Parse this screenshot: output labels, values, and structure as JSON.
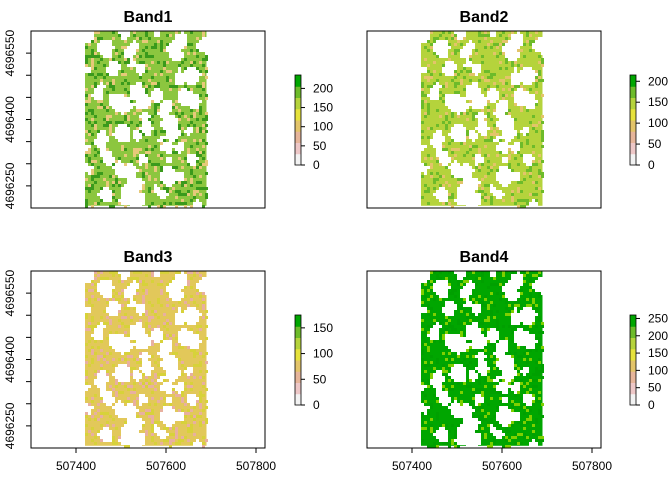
{
  "chart_data": [
    {
      "type": "heatmap",
      "title": "Band1",
      "xlim": [
        507300,
        507820
      ],
      "ylim": [
        4696200,
        4696600
      ],
      "x_ticks": [],
      "y_ticks": [
        "4696250",
        "4696400",
        "4696550"
      ],
      "raster_extent": {
        "x": [
          507420,
          507690
        ],
        "y": [
          4696205,
          4696600
        ]
      },
      "legend": {
        "min": 0,
        "max": 235,
        "ticks": [
          "0",
          "50",
          "100",
          "150",
          "200"
        ]
      },
      "value_range": [
        0,
        235
      ],
      "colors": {
        "dominant": "#8cc63f",
        "high": "#3a9a1c",
        "low": "#e6c97a",
        "nodata": "#ffffff"
      },
      "nodata_fraction": 0.3
    },
    {
      "type": "heatmap",
      "title": "Band2",
      "xlim": [
        507300,
        507820
      ],
      "ylim": [
        4696200,
        4696600
      ],
      "x_ticks": [],
      "y_ticks": [],
      "raster_extent": {
        "x": [
          507420,
          507690
        ],
        "y": [
          4696205,
          4696600
        ]
      },
      "legend": {
        "min": 0,
        "max": 215,
        "ticks": [
          "0",
          "50",
          "100",
          "150",
          "200"
        ]
      },
      "value_range": [
        0,
        215
      ],
      "colors": {
        "dominant": "#b5d33c",
        "high": "#6dbb2a",
        "low": "#e3c46a",
        "nodata": "#ffffff"
      },
      "nodata_fraction": 0.3
    },
    {
      "type": "heatmap",
      "title": "Band3",
      "xlim": [
        507300,
        507820
      ],
      "ylim": [
        4696200,
        4696600
      ],
      "x_ticks": [
        "507400",
        "507600",
        "507800"
      ],
      "y_ticks": [
        "4696250",
        "4696400",
        "4696550"
      ],
      "raster_extent": {
        "x": [
          507420,
          507690
        ],
        "y": [
          4696205,
          4696600
        ]
      },
      "legend": {
        "min": 0,
        "max": 175,
        "ticks": [
          "0",
          "50",
          "100",
          "150"
        ]
      },
      "value_range": [
        0,
        175
      ],
      "colors": {
        "dominant": "#e2c85a",
        "high": "#d7d23a",
        "low": "#e8b0a0",
        "nodata": "#ffffff"
      },
      "nodata_fraction": 0.3
    },
    {
      "type": "heatmap",
      "title": "Band4",
      "xlim": [
        507300,
        507820
      ],
      "ylim": [
        4696200,
        4696600
      ],
      "x_ticks": [
        "507400",
        "507600",
        "507800"
      ],
      "y_ticks": [],
      "raster_extent": {
        "x": [
          507420,
          507690
        ],
        "y": [
          4696205,
          4696600
        ]
      },
      "legend": {
        "min": 0,
        "max": 260,
        "ticks": [
          "0",
          "50",
          "100",
          "150",
          "200",
          "250"
        ]
      },
      "value_range": [
        0,
        260
      ],
      "colors": {
        "dominant": "#00a600",
        "high": "#00a000",
        "low": "#7fd000",
        "nodata": "#ffffff"
      },
      "nodata_fraction": 0.3
    }
  ],
  "legend_colors": [
    "#f2f2f2",
    "#edc7c7",
    "#e6b59a",
    "#e3c46a",
    "#e6e23c",
    "#b5d33c",
    "#6dbb2a",
    "#00a600"
  ]
}
